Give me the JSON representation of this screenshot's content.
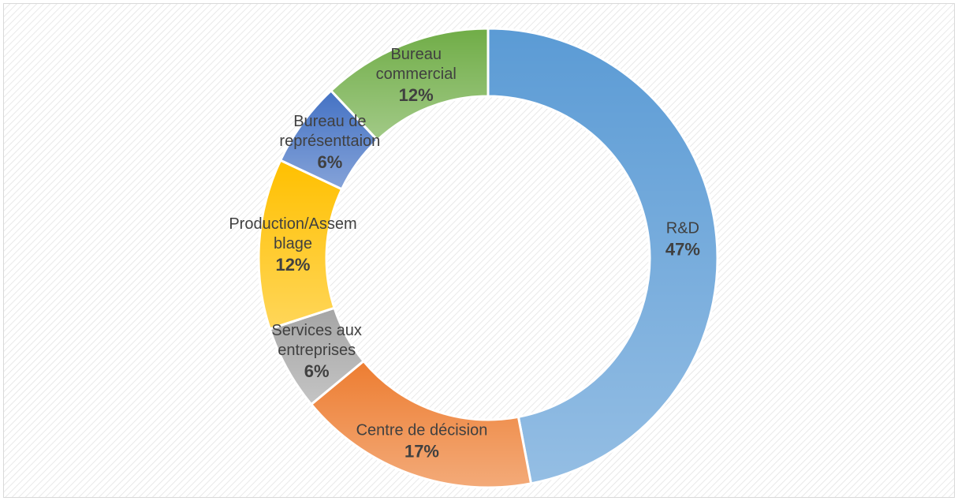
{
  "chart_data": {
    "type": "donut",
    "categories": [
      "R&D",
      "Centre de décision",
      "Services aux entreprises",
      "Production/Assemblage",
      "Bureau de représenttaion",
      "Bureau commercial"
    ],
    "values": [
      47,
      17,
      6,
      12,
      6,
      12
    ],
    "value_labels": [
      "47%",
      "17%",
      "6%",
      "12%",
      "6%",
      "12%"
    ],
    "colors": [
      "#5b9bd5",
      "#ed7d31",
      "#a5a5a5",
      "#ffc000",
      "#4472c4",
      "#70ad47"
    ]
  }
}
